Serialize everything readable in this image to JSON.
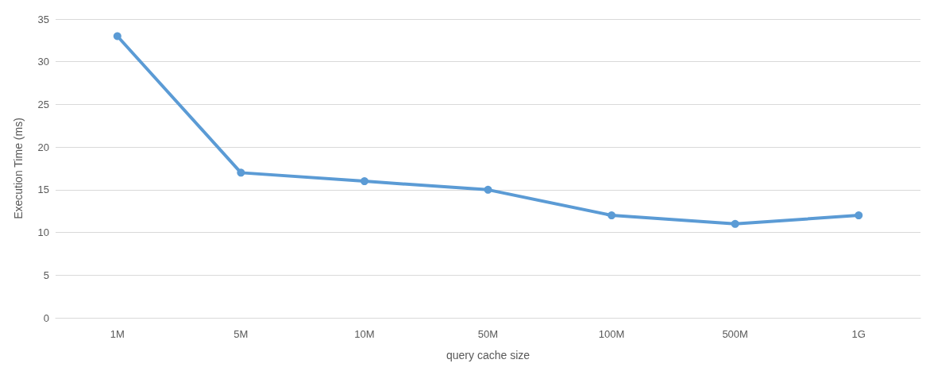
{
  "chart_data": {
    "type": "line",
    "xlabel": "query cache size",
    "ylabel": "Execution Time (ms)",
    "categories": [
      "1M",
      "5M",
      "10M",
      "50M",
      "100M",
      "500M",
      "1G"
    ],
    "series": [
      {
        "color": "#5b9bd5",
        "values": [
          33,
          17,
          16,
          15,
          12,
          11,
          12
        ]
      }
    ],
    "ylim": [
      0,
      35
    ],
    "yticks": [
      0,
      5,
      10,
      15,
      20,
      25,
      30,
      35
    ],
    "grid": "y",
    "marker": "circle",
    "line_style": "solid"
  }
}
